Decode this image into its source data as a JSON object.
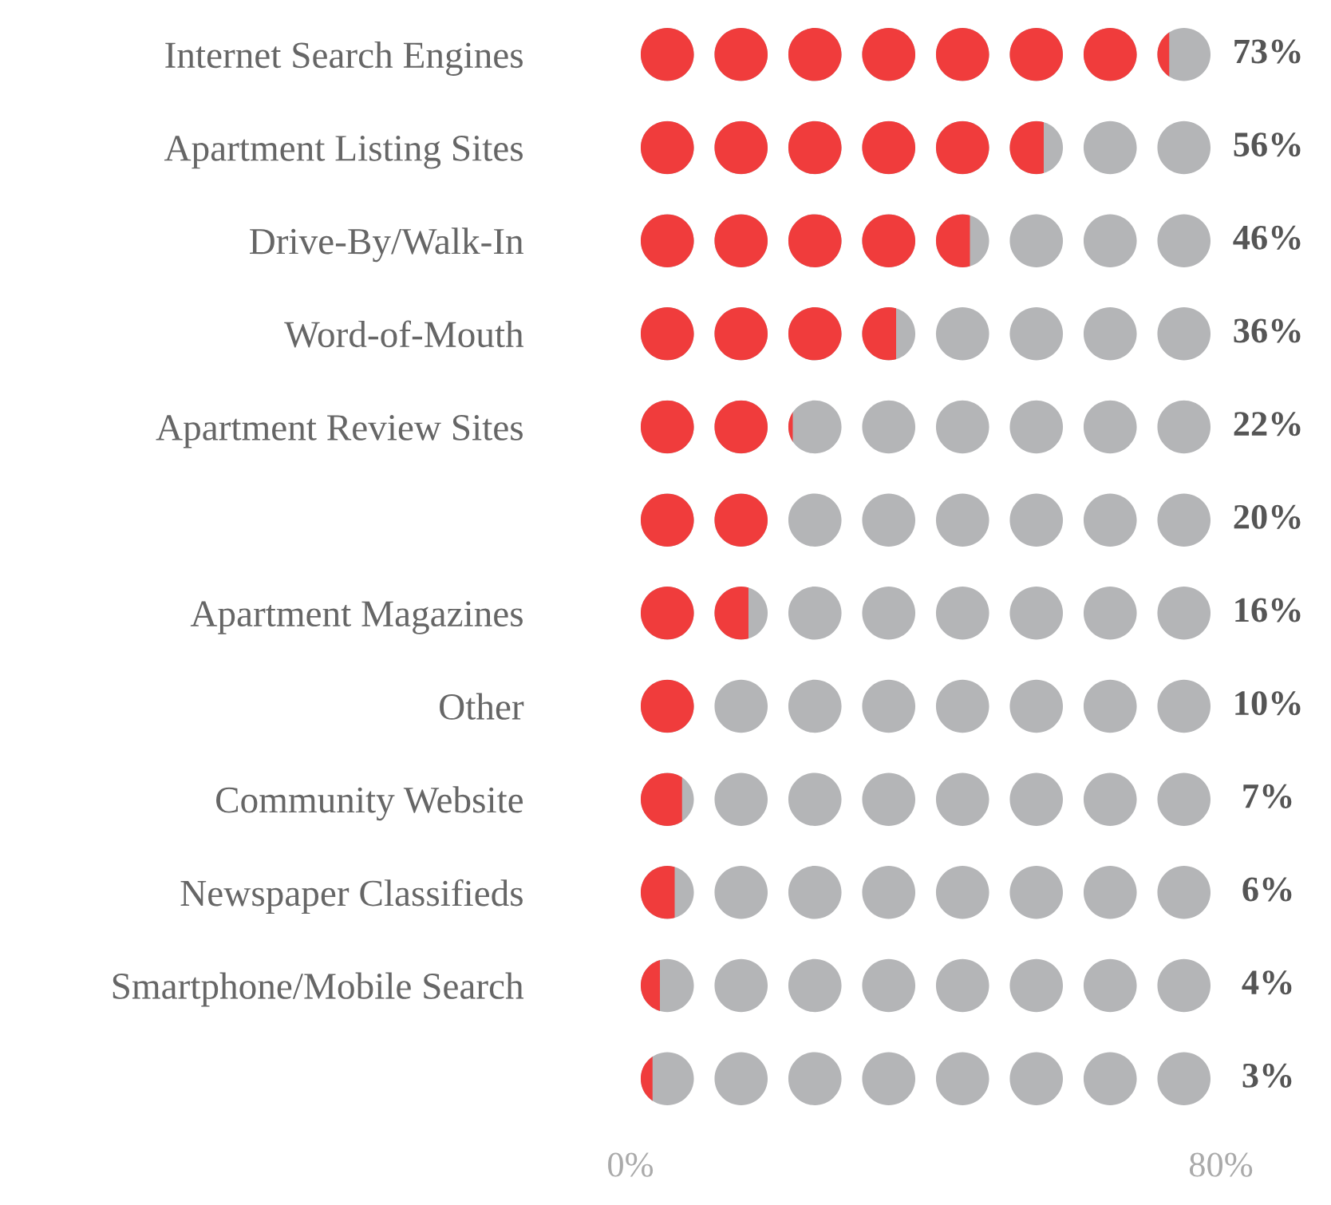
{
  "chart_data": {
    "type": "bar",
    "orientation": "horizontal",
    "categories": [
      "Internet Search Engines",
      "Apartment Listing Sites",
      "Drive-By/Walk-In",
      "Word-of-Mouth",
      "Apartment Review Sites",
      null,
      "Apartment Magazines",
      "Other",
      "Community Website",
      "Newspaper Classifieds",
      "Smartphone/Mobile Search",
      null
    ],
    "values": [
      73,
      56,
      46,
      36,
      22,
      20,
      16,
      10,
      7,
      6,
      4,
      3
    ],
    "value_labels": [
      "73%",
      "56%",
      "46%",
      "36%",
      "22%",
      "20%",
      "16%",
      "10%",
      "7%",
      "6%",
      "4%",
      "3%"
    ],
    "color": "#f03c3c",
    "xlim": [
      0,
      80
    ],
    "xticks": [
      {
        "value": 0,
        "label": "0%"
      },
      {
        "value": 80,
        "label": "80%"
      }
    ],
    "grid": false,
    "legend": false
  }
}
